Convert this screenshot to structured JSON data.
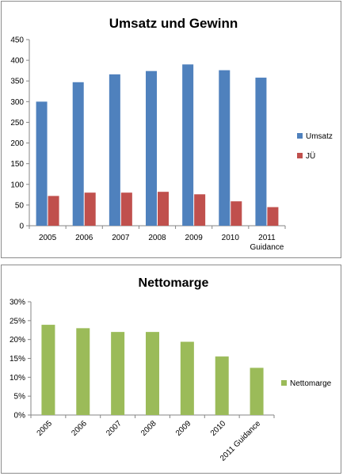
{
  "chart_data": [
    {
      "type": "bar",
      "title": "Umsatz und Gewinn",
      "categories": [
        [
          "2005"
        ],
        [
          "2006"
        ],
        [
          "2007"
        ],
        [
          "2008"
        ],
        [
          "2009"
        ],
        [
          "2010"
        ],
        [
          "2011",
          "Guidance"
        ]
      ],
      "series": [
        {
          "name": "Umsatz",
          "color": "#4f81bd",
          "values": [
            300,
            347,
            366,
            374,
            390,
            376,
            358
          ]
        },
        {
          "name": "JÜ",
          "color": "#c0504d",
          "values": [
            72,
            80,
            80,
            82,
            76,
            59,
            45
          ]
        }
      ],
      "ylim": [
        0,
        450
      ],
      "yticks": [
        "0",
        "50",
        "100",
        "150",
        "200",
        "250",
        "300",
        "350",
        "400",
        "450"
      ],
      "grid": false,
      "legend": "right"
    },
    {
      "type": "bar",
      "title": "Nettomarge",
      "categories": [
        "2005",
        "2006",
        "2007",
        "2008",
        "2009",
        "2010",
        "2011 Guidance"
      ],
      "series": [
        {
          "name": "Nettomarge",
          "color": "#9bbb59",
          "values": [
            23.9,
            23.0,
            22.0,
            22.0,
            19.4,
            15.5,
            12.5
          ]
        }
      ],
      "ylim": [
        0,
        30
      ],
      "yticks": [
        "0%",
        "5%",
        "10%",
        "15%",
        "20%",
        "25%",
        "30%"
      ],
      "grid": false,
      "legend": "right"
    }
  ]
}
